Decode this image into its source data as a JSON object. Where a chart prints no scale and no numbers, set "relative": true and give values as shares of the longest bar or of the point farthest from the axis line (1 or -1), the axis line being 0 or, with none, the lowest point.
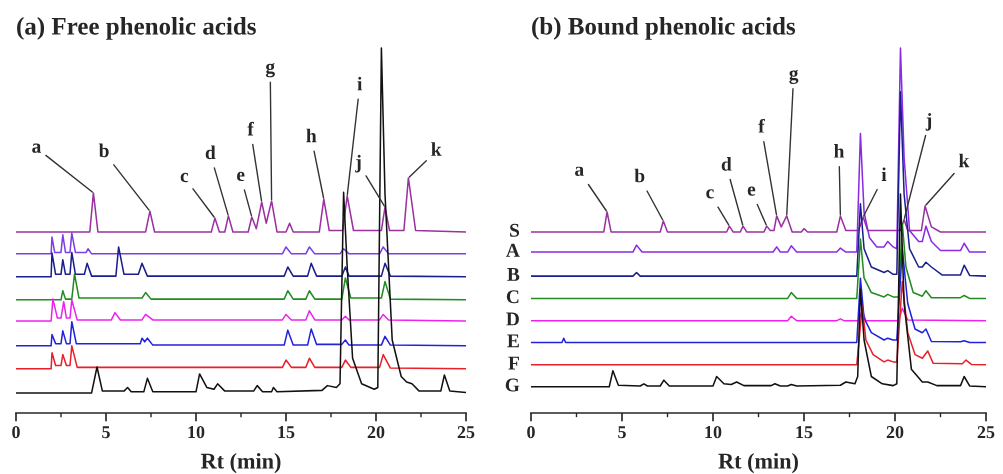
{
  "chart_data": [
    {
      "type": "line",
      "title": "(a) Free phenolic acids",
      "xlabel": "Rt (min)",
      "relative": true,
      "xlim": [
        0,
        25
      ],
      "xticks": [
        0,
        {
          "value": 2.5,
          "label": null
        },
        5,
        {
          "value": 7.5,
          "label": null
        },
        10,
        {
          "value": 12.5,
          "label": null
        },
        15,
        {
          "value": 17.5,
          "label": null
        },
        20,
        {
          "value": 22.5,
          "label": null
        },
        25
      ],
      "series": [
        {
          "color": "#9b30a0",
          "x": [
            0,
            4.1,
            4.3,
            4.55,
            7.2,
            7.44,
            7.7,
            10.85,
            11.05,
            11.3,
            11.6,
            11.8,
            12.05,
            12.9,
            13.1,
            13.35,
            13.65,
            13.9,
            14.2,
            14.5,
            15.0,
            15.2,
            15.4,
            16.85,
            17.1,
            17.4,
            18.15,
            18.4,
            18.75,
            20.3,
            20.5,
            20.75,
            21.55,
            21.8,
            22.2,
            25
          ],
          "values": [
            0.496,
            0.496,
            0.603,
            0.496,
            0.496,
            0.553,
            0.496,
            0.496,
            0.534,
            0.496,
            0.496,
            0.54,
            0.496,
            0.496,
            0.537,
            0.505,
            0.578,
            0.52,
            0.581,
            0.496,
            0.496,
            0.52,
            0.496,
            0.496,
            0.586,
            0.5,
            0.5,
            0.595,
            0.5,
            0.5,
            0.564,
            0.5,
            0.5,
            0.644,
            0.5,
            0.496
          ]
        },
        {
          "color": "#7b3fe4",
          "x": [
            0,
            1.95,
            2.0,
            2.15,
            2.5,
            2.6,
            2.75,
            3.0,
            3.1,
            3.3,
            3.9,
            4.0,
            4.2,
            14.8,
            15.0,
            15.3,
            16.1,
            16.3,
            16.6,
            18.0,
            18.2,
            18.5,
            20.2,
            20.4,
            20.7,
            25
          ],
          "values": [
            0.436,
            0.436,
            0.482,
            0.44,
            0.44,
            0.488,
            0.44,
            0.44,
            0.493,
            0.44,
            0.44,
            0.45,
            0.436,
            0.436,
            0.455,
            0.436,
            0.436,
            0.455,
            0.436,
            0.436,
            0.45,
            0.436,
            0.436,
            0.455,
            0.436,
            0.436
          ]
        },
        {
          "color": "#1a1f8c",
          "x": [
            0,
            1.95,
            2.0,
            2.2,
            2.5,
            2.6,
            2.75,
            3.0,
            3.1,
            3.3,
            3.8,
            3.95,
            4.2,
            5.55,
            5.7,
            6.0,
            6.8,
            7.0,
            7.3,
            14.9,
            15.1,
            15.4,
            16.2,
            16.4,
            16.7,
            18.1,
            18.3,
            18.5,
            20.3,
            20.5,
            20.8,
            25
          ],
          "values": [
            0.373,
            0.373,
            0.438,
            0.38,
            0.38,
            0.42,
            0.38,
            0.38,
            0.44,
            0.38,
            0.38,
            0.41,
            0.375,
            0.375,
            0.455,
            0.38,
            0.38,
            0.41,
            0.375,
            0.375,
            0.4,
            0.375,
            0.375,
            0.41,
            0.375,
            0.375,
            0.4,
            0.375,
            0.375,
            0.41,
            0.375,
            0.373
          ]
        },
        {
          "color": "#228b22",
          "x": [
            0,
            2.5,
            2.6,
            2.75,
            3.1,
            3.25,
            3.5,
            7.0,
            7.2,
            7.5,
            14.9,
            15.1,
            15.4,
            16.1,
            16.3,
            16.6,
            18.1,
            18.3,
            18.6,
            20.3,
            20.5,
            20.8,
            25
          ],
          "values": [
            0.31,
            0.31,
            0.335,
            0.312,
            0.312,
            0.381,
            0.315,
            0.315,
            0.33,
            0.312,
            0.312,
            0.335,
            0.312,
            0.312,
            0.335,
            0.312,
            0.312,
            0.37,
            0.315,
            0.315,
            0.36,
            0.312,
            0.31
          ]
        },
        {
          "color": "#ee22ee",
          "x": [
            0,
            1.95,
            2.05,
            2.3,
            2.5,
            2.65,
            2.8,
            3.0,
            3.1,
            3.4,
            5.3,
            5.5,
            5.8,
            7.0,
            7.2,
            7.6,
            14.8,
            15.0,
            15.3,
            16.1,
            16.3,
            16.6,
            18.1,
            18.3,
            18.5,
            20.2,
            20.4,
            20.7,
            25
          ],
          "values": [
            0.252,
            0.252,
            0.312,
            0.26,
            0.26,
            0.305,
            0.26,
            0.26,
            0.31,
            0.255,
            0.255,
            0.275,
            0.255,
            0.255,
            0.27,
            0.255,
            0.255,
            0.27,
            0.255,
            0.255,
            0.28,
            0.255,
            0.255,
            0.265,
            0.255,
            0.255,
            0.27,
            0.255,
            0.252
          ]
        },
        {
          "color": "#2222dd",
          "x": [
            0,
            1.95,
            2.0,
            2.2,
            2.5,
            2.6,
            2.8,
            3.0,
            3.1,
            3.35,
            6.9,
            7.0,
            7.15,
            7.3,
            7.6,
            14.9,
            15.1,
            15.4,
            16.2,
            16.4,
            16.7,
            18.1,
            18.3,
            18.5,
            20.3,
            20.5,
            20.8,
            25
          ],
          "values": [
            0.184,
            0.184,
            0.215,
            0.19,
            0.19,
            0.225,
            0.19,
            0.19,
            0.25,
            0.19,
            0.19,
            0.205,
            0.195,
            0.205,
            0.186,
            0.186,
            0.227,
            0.186,
            0.186,
            0.23,
            0.188,
            0.188,
            0.2,
            0.186,
            0.186,
            0.21,
            0.186,
            0.184
          ]
        },
        {
          "color": "#e8202a",
          "x": [
            0,
            1.95,
            2.0,
            2.2,
            2.5,
            2.6,
            2.8,
            3.0,
            3.1,
            3.4,
            14.8,
            15.0,
            15.3,
            16.1,
            16.3,
            16.6,
            18.1,
            18.3,
            18.6,
            20.2,
            20.4,
            20.8,
            25
          ],
          "values": [
            0.121,
            0.121,
            0.165,
            0.13,
            0.13,
            0.16,
            0.13,
            0.13,
            0.184,
            0.125,
            0.125,
            0.145,
            0.125,
            0.125,
            0.15,
            0.125,
            0.125,
            0.145,
            0.125,
            0.125,
            0.16,
            0.123,
            0.121
          ]
        },
        {
          "color": "#111111",
          "x": [
            0,
            4.2,
            4.5,
            4.8,
            6.0,
            6.2,
            6.4,
            7.1,
            7.3,
            7.6,
            10.0,
            10.2,
            10.6,
            11.0,
            11.2,
            11.6,
            13.2,
            13.4,
            13.7,
            14.2,
            14.3,
            14.5,
            17.0,
            17.3,
            17.8,
            18.0,
            18.2,
            18.4,
            18.7,
            19.2,
            19.9,
            20.1,
            20.3,
            20.5,
            20.9,
            21.4,
            21.7,
            22.0,
            22.4,
            23.6,
            23.8,
            24.1,
            25
          ],
          "values": [
            0.055,
            0.055,
            0.126,
            0.06,
            0.06,
            0.07,
            0.058,
            0.058,
            0.095,
            0.058,
            0.058,
            0.107,
            0.07,
            0.065,
            0.08,
            0.06,
            0.06,
            0.075,
            0.058,
            0.058,
            0.07,
            0.058,
            0.062,
            0.075,
            0.07,
            0.08,
            0.605,
            0.4,
            0.15,
            0.08,
            0.065,
            0.07,
            1.0,
            0.6,
            0.2,
            0.1,
            0.085,
            0.08,
            0.06,
            0.06,
            0.104,
            0.06,
            0.056
          ]
        }
      ],
      "annotations": [
        {
          "text": "a",
          "x": 4.3,
          "y": 0.603
        },
        {
          "text": "b",
          "x": 7.44,
          "y": 0.553
        },
        {
          "text": "c",
          "x": 11.05,
          "y": 0.534
        },
        {
          "text": "d",
          "x": 11.8,
          "y": 0.54
        },
        {
          "text": "e",
          "x": 13.1,
          "y": 0.537
        },
        {
          "text": "f",
          "x": 13.65,
          "y": 0.578
        },
        {
          "text": "g",
          "x": 14.2,
          "y": 0.581
        },
        {
          "text": "h",
          "x": 17.1,
          "y": 0.586
        },
        {
          "text": "i",
          "x": 18.4,
          "y": 0.595
        },
        {
          "text": "j",
          "x": 20.5,
          "y": 0.564
        },
        {
          "text": "k",
          "x": 21.8,
          "y": 0.644
        }
      ]
    },
    {
      "type": "line",
      "title": "(b) Bound phenolic acids",
      "xlabel": "Rt (min)",
      "relative": true,
      "xlim": [
        0,
        25
      ],
      "xticks": [
        0,
        {
          "value": 2.5,
          "label": null
        },
        5,
        {
          "value": 7.5,
          "label": null
        },
        10,
        {
          "value": 12.5,
          "label": null
        },
        15,
        {
          "value": 17.5,
          "label": null
        },
        20,
        {
          "value": 22.5,
          "label": null
        },
        25
      ],
      "series": [
        {
          "name": "S",
          "color": "#9b30a0",
          "x": [
            0,
            4.0,
            4.18,
            4.4,
            7.1,
            7.27,
            7.5,
            10.75,
            10.9,
            11.1,
            11.5,
            11.65,
            11.85,
            12.8,
            12.95,
            13.15,
            13.35,
            13.5,
            13.75,
            14.05,
            14.35,
            14.85,
            15.0,
            15.2,
            16.8,
            17.0,
            17.3,
            18.0,
            18.25,
            18.5,
            20.3,
            20.5,
            20.7,
            21.45,
            21.65,
            22.0,
            22.5,
            25
          ],
          "values": [
            0.496,
            0.496,
            0.551,
            0.496,
            0.496,
            0.526,
            0.496,
            0.496,
            0.512,
            0.496,
            0.496,
            0.512,
            0.496,
            0.496,
            0.512,
            0.5,
            0.5,
            0.54,
            0.51,
            0.54,
            0.496,
            0.496,
            0.505,
            0.496,
            0.496,
            0.54,
            0.5,
            0.5,
            0.537,
            0.5,
            0.5,
            0.53,
            0.5,
            0.5,
            0.567,
            0.51,
            0.496,
            0.496
          ]
        },
        {
          "name": "A",
          "color": "#8a2be2",
          "x": [
            0,
            5.6,
            5.8,
            6.1,
            13.3,
            13.5,
            13.7,
            14.1,
            14.3,
            14.6,
            16.8,
            17.0,
            17.3,
            17.9,
            18.1,
            18.3,
            18.6,
            19.0,
            19.4,
            19.6,
            19.9,
            20.1,
            20.3,
            20.5,
            20.8,
            21.3,
            21.5,
            21.7,
            22.0,
            22.5,
            23.6,
            23.8,
            24.1,
            25
          ],
          "values": [
            0.441,
            0.441,
            0.46,
            0.441,
            0.441,
            0.455,
            0.441,
            0.441,
            0.458,
            0.441,
            0.441,
            0.452,
            0.441,
            0.441,
            0.766,
            0.55,
            0.48,
            0.455,
            0.455,
            0.47,
            0.455,
            0.45,
            1.0,
            0.7,
            0.5,
            0.47,
            0.47,
            0.512,
            0.47,
            0.445,
            0.445,
            0.465,
            0.441,
            0.441
          ]
        },
        {
          "name": "B",
          "color": "#1a1f8c",
          "x": [
            0,
            5.6,
            5.8,
            6.0,
            17.9,
            18.1,
            18.3,
            18.7,
            19.4,
            19.6,
            19.9,
            20.1,
            20.3,
            20.5,
            20.8,
            21.3,
            21.5,
            21.7,
            22.0,
            22.6,
            23.6,
            23.8,
            24.1,
            25
          ],
          "values": [
            0.375,
            0.375,
            0.385,
            0.375,
            0.375,
            0.573,
            0.45,
            0.4,
            0.385,
            0.39,
            0.38,
            0.38,
            0.88,
            0.6,
            0.45,
            0.4,
            0.4,
            0.413,
            0.4,
            0.378,
            0.378,
            0.405,
            0.377,
            0.375
          ]
        },
        {
          "name": "C",
          "color": "#228b22",
          "x": [
            0,
            14.1,
            14.3,
            14.6,
            17.9,
            18.1,
            18.3,
            18.7,
            19.4,
            19.6,
            19.9,
            20.2,
            20.4,
            20.6,
            21.0,
            21.5,
            21.7,
            22.0,
            23.6,
            23.8,
            24.1,
            25
          ],
          "values": [
            0.314,
            0.314,
            0.33,
            0.314,
            0.314,
            0.477,
            0.37,
            0.33,
            0.318,
            0.325,
            0.318,
            0.318,
            0.52,
            0.4,
            0.33,
            0.32,
            0.335,
            0.316,
            0.316,
            0.322,
            0.314,
            0.314
          ]
        },
        {
          "name": "D",
          "color": "#ee22ee",
          "x": [
            0,
            14.1,
            14.3,
            14.6,
            16.8,
            17.0,
            17.2,
            18.0,
            18.2,
            18.4,
            20.2,
            20.4,
            20.7,
            25
          ],
          "values": [
            0.253,
            0.253,
            0.265,
            0.253,
            0.253,
            0.258,
            0.253,
            0.253,
            0.28,
            0.253,
            0.253,
            0.287,
            0.255,
            0.253
          ]
        },
        {
          "name": "E",
          "color": "#2222dd",
          "x": [
            0,
            1.7,
            1.8,
            1.9,
            17.9,
            18.1,
            18.3,
            18.7,
            19.4,
            19.6,
            19.9,
            20.1,
            20.4,
            20.7,
            21.1,
            21.5,
            21.7,
            22.0,
            23.6,
            23.8,
            24.1,
            25
          ],
          "values": [
            0.193,
            0.193,
            0.205,
            0.193,
            0.193,
            0.369,
            0.26,
            0.22,
            0.2,
            0.205,
            0.2,
            0.2,
            0.45,
            0.3,
            0.23,
            0.22,
            0.23,
            0.196,
            0.195,
            0.198,
            0.193,
            0.193
          ]
        },
        {
          "name": "F",
          "color": "#e8202a",
          "x": [
            0,
            17.9,
            18.2,
            18.4,
            18.8,
            19.4,
            19.6,
            19.9,
            20.1,
            20.4,
            20.7,
            21.1,
            21.5,
            21.8,
            22.1,
            23.7,
            23.9,
            24.2,
            25
          ],
          "values": [
            0.132,
            0.132,
            0.292,
            0.2,
            0.16,
            0.14,
            0.145,
            0.14,
            0.14,
            0.36,
            0.22,
            0.16,
            0.15,
            0.17,
            0.136,
            0.135,
            0.145,
            0.133,
            0.132
          ]
        },
        {
          "name": "G",
          "color": "#111111",
          "x": [
            0,
            4.3,
            4.5,
            4.8,
            6.0,
            6.2,
            6.4,
            7.1,
            7.3,
            7.6,
            10.0,
            10.2,
            10.6,
            11.0,
            11.3,
            11.7,
            13.2,
            13.4,
            13.7,
            14.1,
            14.3,
            14.6,
            17.0,
            17.3,
            17.8,
            17.95,
            18.1,
            18.3,
            18.7,
            19.3,
            19.9,
            20.1,
            20.3,
            20.5,
            20.9,
            21.5,
            21.8,
            22.3,
            23.6,
            23.8,
            24.1,
            25
          ],
          "values": [
            0.072,
            0.072,
            0.116,
            0.076,
            0.074,
            0.08,
            0.074,
            0.074,
            0.09,
            0.074,
            0.074,
            0.1,
            0.08,
            0.078,
            0.085,
            0.075,
            0.075,
            0.08,
            0.074,
            0.074,
            0.078,
            0.074,
            0.076,
            0.085,
            0.08,
            0.1,
            0.339,
            0.2,
            0.1,
            0.08,
            0.075,
            0.08,
            0.6,
            0.3,
            0.12,
            0.085,
            0.085,
            0.075,
            0.075,
            0.1,
            0.074,
            0.072
          ]
        }
      ],
      "annotations": [
        {
          "text": "a",
          "x": 4.18,
          "y": 0.551
        },
        {
          "text": "b",
          "x": 7.27,
          "y": 0.526
        },
        {
          "text": "c",
          "x": 10.9,
          "y": 0.512
        },
        {
          "text": "d",
          "x": 11.65,
          "y": 0.512
        },
        {
          "text": "e",
          "x": 12.95,
          "y": 0.512
        },
        {
          "text": "f",
          "x": 13.5,
          "y": 0.54
        },
        {
          "text": "g",
          "x": 14.05,
          "y": 0.54
        },
        {
          "text": "h",
          "x": 17.0,
          "y": 0.54
        },
        {
          "text": "i",
          "x": 18.25,
          "y": 0.537
        },
        {
          "text": "j",
          "x": 20.5,
          "y": 0.53
        },
        {
          "text": "k",
          "x": 21.65,
          "y": 0.567
        }
      ]
    }
  ]
}
